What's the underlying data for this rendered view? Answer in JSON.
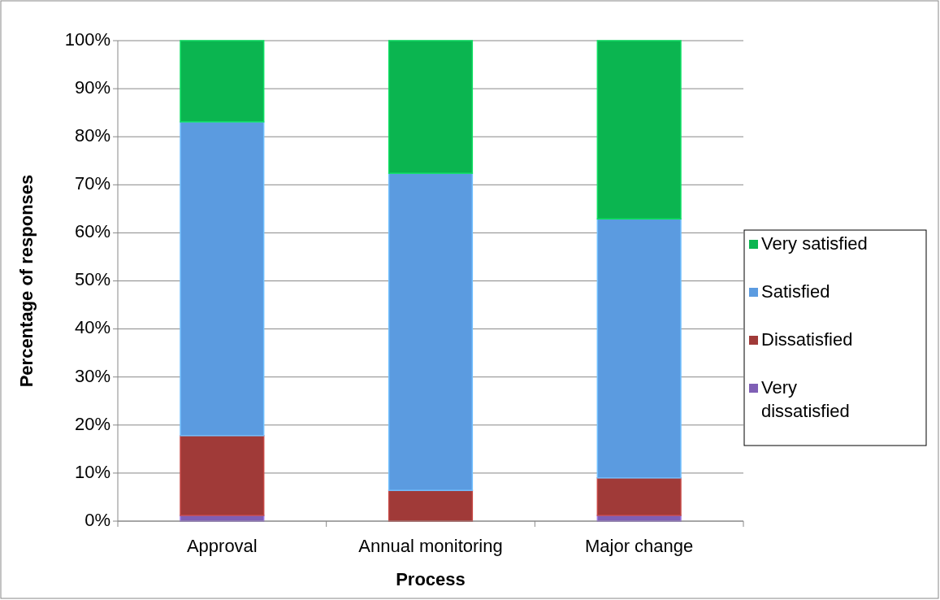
{
  "chart_data": {
    "type": "bar",
    "stacked": true,
    "xlabel": "Process",
    "ylabel": "Percentage of responses",
    "categories": [
      "Approval",
      "Annual monitoring",
      "Major change"
    ],
    "series": [
      {
        "name": "Very dissatisfied",
        "color": "#7f5fb5",
        "values": [
          1.2,
          0,
          1.2
        ]
      },
      {
        "name": "Dissatisfied",
        "color": "#a03a38",
        "values": [
          16.6,
          6.4,
          7.8
        ]
      },
      {
        "name": "Satisfied",
        "color": "#5b9be0",
        "values": [
          65.3,
          66,
          53.9
        ]
      },
      {
        "name": "Very satisfied",
        "color": "#0bb550",
        "values": [
          16.9,
          27.6,
          37.1
        ]
      }
    ],
    "ylim": [
      0,
      100
    ],
    "yticks": [
      {
        "value": 0,
        "label": "0%"
      },
      {
        "value": 10,
        "label": "10%"
      },
      {
        "value": 20,
        "label": "20%"
      },
      {
        "value": 30,
        "label": "30%"
      },
      {
        "value": 40,
        "label": "40%"
      },
      {
        "value": 50,
        "label": "50%"
      },
      {
        "value": 60,
        "label": "60%"
      },
      {
        "value": 70,
        "label": "70%"
      },
      {
        "value": 80,
        "label": "80%"
      },
      {
        "value": 90,
        "label": "90%"
      },
      {
        "value": 100,
        "label": "100%"
      }
    ],
    "grid": "y",
    "legend": "right"
  }
}
